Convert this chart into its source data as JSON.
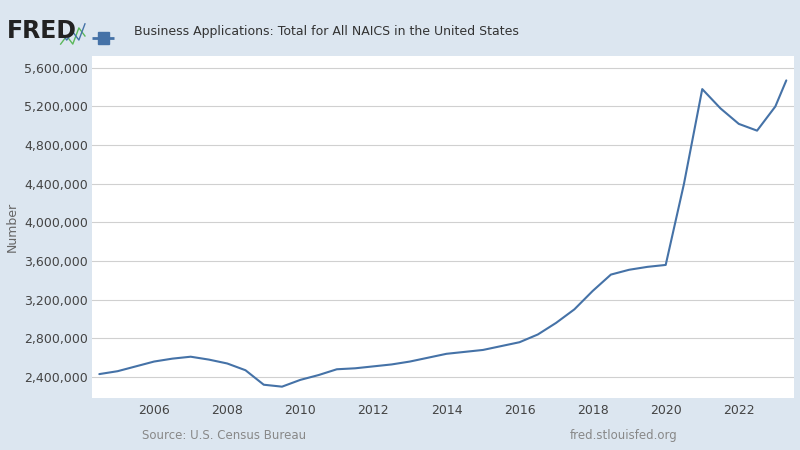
{
  "title": "Business Applications: Total for All NAICS in the United States",
  "ylabel": "Number",
  "source_left": "Source: U.S. Census Bureau",
  "source_right": "fred.stlouisfed.org",
  "line_color": "#4572a7",
  "outer_bg_color": "#dce6f0",
  "plot_bg_color": "#ffffff",
  "ylim": [
    2180000,
    5720000
  ],
  "yticks": [
    2400000,
    2800000,
    3200000,
    3600000,
    4000000,
    4400000,
    4800000,
    5200000,
    5600000
  ],
  "xlim": [
    2004.3,
    2023.5
  ],
  "years": [
    2004.5,
    2005.0,
    2005.5,
    2006.0,
    2006.5,
    2007.0,
    2007.5,
    2008.0,
    2008.5,
    2009.0,
    2009.5,
    2010.0,
    2010.5,
    2011.0,
    2011.5,
    2012.0,
    2012.5,
    2013.0,
    2013.5,
    2014.0,
    2014.5,
    2015.0,
    2015.5,
    2016.0,
    2016.5,
    2017.0,
    2017.5,
    2018.0,
    2018.5,
    2019.0,
    2019.5,
    2020.0,
    2020.5,
    2021.0,
    2021.5,
    2022.0,
    2022.5,
    2023.0,
    2023.3
  ],
  "values": [
    2430000,
    2460000,
    2510000,
    2560000,
    2590000,
    2610000,
    2580000,
    2540000,
    2470000,
    2320000,
    2300000,
    2370000,
    2420000,
    2480000,
    2490000,
    2510000,
    2530000,
    2560000,
    2600000,
    2640000,
    2660000,
    2680000,
    2720000,
    2760000,
    2840000,
    2960000,
    3100000,
    3290000,
    3460000,
    3510000,
    3540000,
    3560000,
    4400000,
    5380000,
    5180000,
    5020000,
    4950000,
    5200000,
    5470000
  ],
  "xtick_years": [
    2006,
    2008,
    2010,
    2012,
    2014,
    2016,
    2018,
    2020,
    2022
  ]
}
